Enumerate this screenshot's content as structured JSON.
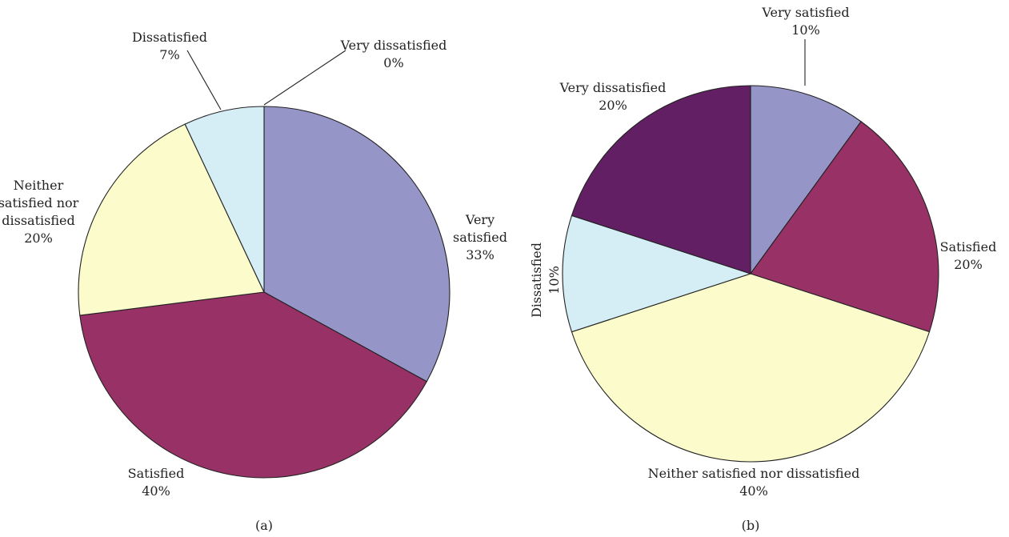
{
  "chart_data": [
    {
      "type": "pie",
      "panel_label": "(a)",
      "slices": [
        {
          "label_lines": [
            "Very",
            "satisfied"
          ],
          "value": 33,
          "value_label": "33%",
          "color": "#9595c8"
        },
        {
          "label_lines": [
            "Satisfied"
          ],
          "value": 40,
          "value_label": "40%",
          "color": "#983266"
        },
        {
          "label_lines": [
            "Neither",
            "satisfied nor",
            "dissatisfied"
          ],
          "value": 20,
          "value_label": "20%",
          "color": "#fbfbcc"
        },
        {
          "label_lines": [
            "Dissatisfied"
          ],
          "value": 7,
          "value_label": "7%",
          "color": "#d5eef5"
        },
        {
          "label_lines": [
            "Very dissatisfied"
          ],
          "value": 0,
          "value_label": "0%",
          "color": "#631f63"
        }
      ]
    },
    {
      "type": "pie",
      "panel_label": "(b)",
      "slices": [
        {
          "label_lines": [
            "Very satisfied"
          ],
          "value": 10,
          "value_label": "10%",
          "color": "#9595c8"
        },
        {
          "label_lines": [
            "Satisfied"
          ],
          "value": 20,
          "value_label": "20%",
          "color": "#983266"
        },
        {
          "label_lines": [
            "Neither satisfied nor dissatisfied"
          ],
          "value": 40,
          "value_label": "40%",
          "color": "#fbfbcc"
        },
        {
          "label_lines": [
            "Dissatisfied"
          ],
          "value": 10,
          "value_label": "10%",
          "color": "#d5eef5"
        },
        {
          "label_lines": [
            "Very dissatisfied"
          ],
          "value": 20,
          "value_label": "20%",
          "color": "#631f63"
        }
      ]
    }
  ]
}
